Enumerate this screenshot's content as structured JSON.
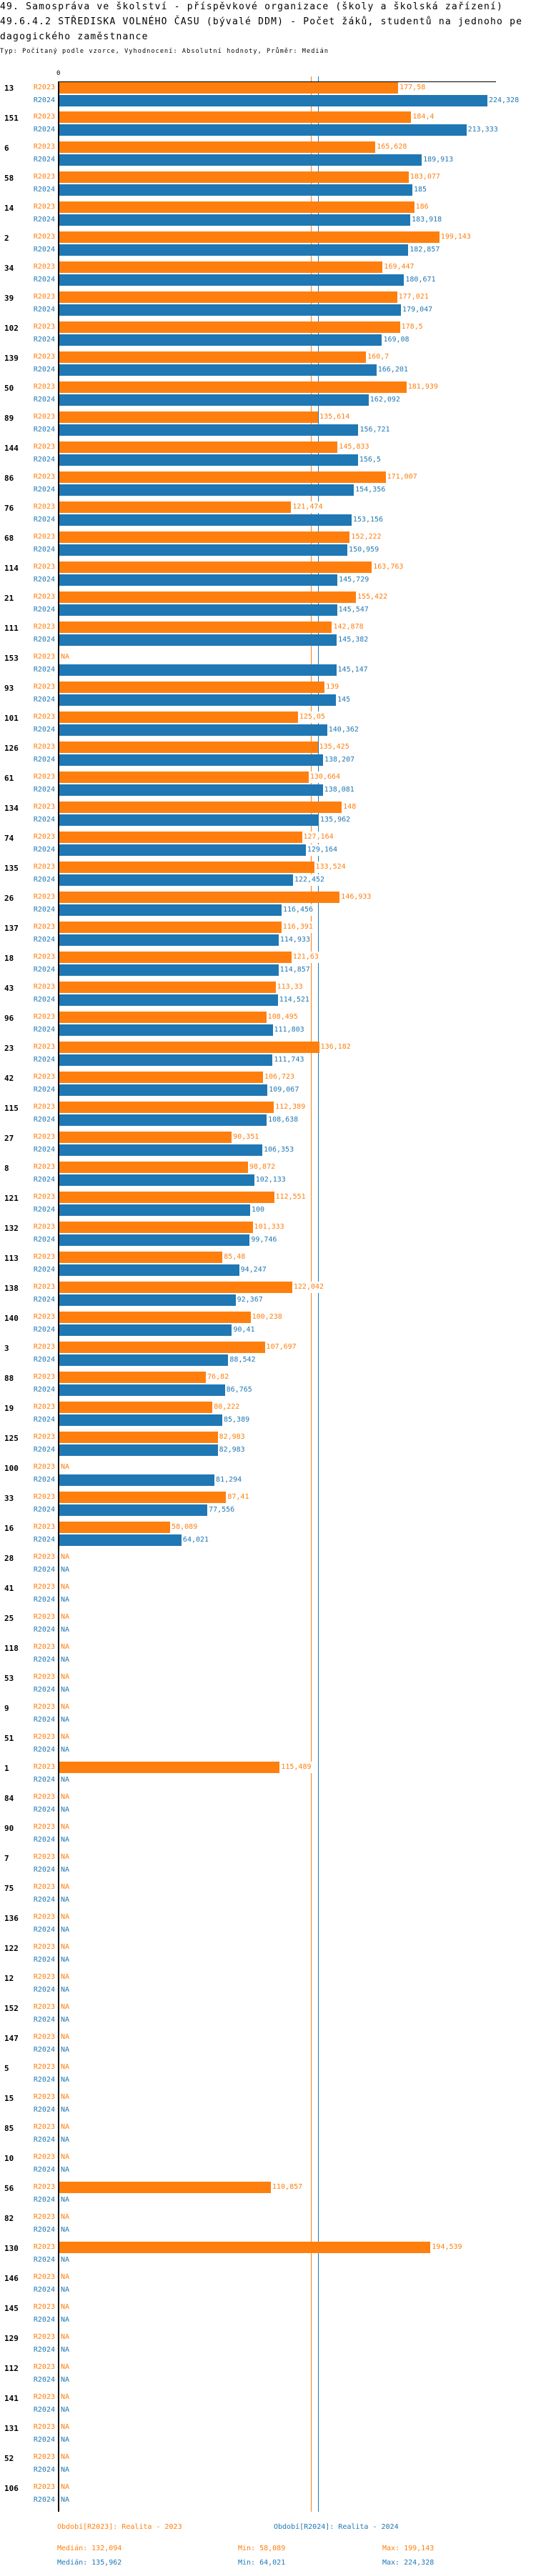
{
  "header": {
    "title_line1": "49. Samospráva ve školství - příspěvkové organizace (školy a školská zařízení)",
    "title_line2": "49.6.4.2 STŘEDISKA VOLNÉHO ČASU (bývalé DDM) - Počet žáků, studentů na jednoho pe",
    "title_line3": "dagogického zaměstnance",
    "subtitle": "Typ: Počítaný podle vzorce, Vyhodnocení: Absolutní hodnoty, Průměr: Medián"
  },
  "chart_data": {
    "type": "bar",
    "orientation": "horizontal",
    "axis_zero_label": "0",
    "xlim": [
      0,
      229
    ],
    "grid": false,
    "na_label": "NA",
    "series": [
      {
        "name": "R2023",
        "color": "#ff7f0e"
      },
      {
        "name": "R2024",
        "color": "#1f77b4"
      }
    ],
    "median_lines": {
      "R2023": 132.094,
      "R2024": 135.962
    },
    "groups": [
      {
        "id": "13",
        "R2023": 177.58,
        "R2024": 224.328
      },
      {
        "id": "151",
        "R2023": 184.4,
        "R2024": 213.333
      },
      {
        "id": "6",
        "R2023": 165.628,
        "R2024": 189.913
      },
      {
        "id": "58",
        "R2023": 183.077,
        "R2024": 185
      },
      {
        "id": "14",
        "R2023": 186,
        "R2024": 183.918
      },
      {
        "id": "2",
        "R2023": 199.143,
        "R2024": 182.857
      },
      {
        "id": "34",
        "R2023": 169.447,
        "R2024": 180.671
      },
      {
        "id": "39",
        "R2023": 177.021,
        "R2024": 179.047
      },
      {
        "id": "102",
        "R2023": 178.5,
        "R2024": 169.08
      },
      {
        "id": "139",
        "R2023": 160.7,
        "R2024": 166.201
      },
      {
        "id": "50",
        "R2023": 181.939,
        "R2024": 162.092
      },
      {
        "id": "89",
        "R2023": 135.614,
        "R2024": 156.721
      },
      {
        "id": "144",
        "R2023": 145.833,
        "R2024": 156.5
      },
      {
        "id": "86",
        "R2023": 171.007,
        "R2024": 154.356
      },
      {
        "id": "76",
        "R2023": 121.474,
        "R2024": 153.156
      },
      {
        "id": "68",
        "R2023": 152.222,
        "R2024": 150.959
      },
      {
        "id": "114",
        "R2023": 163.763,
        "R2024": 145.729
      },
      {
        "id": "21",
        "R2023": 155.422,
        "R2024": 145.547
      },
      {
        "id": "111",
        "R2023": 142.878,
        "R2024": 145.382
      },
      {
        "id": "153",
        "R2023": null,
        "R2024": 145.147
      },
      {
        "id": "93",
        "R2023": 139,
        "R2024": 145
      },
      {
        "id": "101",
        "R2023": 125.05,
        "R2024": 140.362
      },
      {
        "id": "126",
        "R2023": 135.425,
        "R2024": 138.207
      },
      {
        "id": "61",
        "R2023": 130.664,
        "R2024": 138.081
      },
      {
        "id": "134",
        "R2023": 148,
        "R2024": 135.962
      },
      {
        "id": "74",
        "R2023": 127.164,
        "R2024": 129.164
      },
      {
        "id": "135",
        "R2023": 133.524,
        "R2024": 122.452
      },
      {
        "id": "26",
        "R2023": 146.933,
        "R2024": 116.456
      },
      {
        "id": "137",
        "R2023": 116.391,
        "R2024": 114.933
      },
      {
        "id": "18",
        "R2023": 121.63,
        "R2024": 114.857
      },
      {
        "id": "43",
        "R2023": 113.33,
        "R2024": 114.521
      },
      {
        "id": "96",
        "R2023": 108.495,
        "R2024": 111.803
      },
      {
        "id": "23",
        "R2023": 136.182,
        "R2024": 111.743
      },
      {
        "id": "42",
        "R2023": 106.723,
        "R2024": 109.067
      },
      {
        "id": "115",
        "R2023": 112.389,
        "R2024": 108.638
      },
      {
        "id": "27",
        "R2023": 90.351,
        "R2024": 106.353
      },
      {
        "id": "8",
        "R2023": 98.872,
        "R2024": 102.133
      },
      {
        "id": "121",
        "R2023": 112.551,
        "R2024": 100
      },
      {
        "id": "132",
        "R2023": 101.333,
        "R2024": 99.746
      },
      {
        "id": "113",
        "R2023": 85.48,
        "R2024": 94.247
      },
      {
        "id": "138",
        "R2023": 122.042,
        "R2024": 92.367
      },
      {
        "id": "140",
        "R2023": 100.238,
        "R2024": 90.41
      },
      {
        "id": "3",
        "R2023": 107.697,
        "R2024": 88.542
      },
      {
        "id": "88",
        "R2023": 76.82,
        "R2024": 86.765
      },
      {
        "id": "19",
        "R2023": 80.222,
        "R2024": 85.389
      },
      {
        "id": "125",
        "R2023": 82.983,
        "R2024": 82.983
      },
      {
        "id": "100",
        "R2023": null,
        "R2024": 81.294
      },
      {
        "id": "33",
        "R2023": 87.41,
        "R2024": 77.556
      },
      {
        "id": "16",
        "R2023": 58.089,
        "R2024": 64.021
      },
      {
        "id": "28",
        "R2023": null,
        "R2024": null
      },
      {
        "id": "41",
        "R2023": null,
        "R2024": null
      },
      {
        "id": "25",
        "R2023": null,
        "R2024": null
      },
      {
        "id": "118",
        "R2023": null,
        "R2024": null
      },
      {
        "id": "53",
        "R2023": null,
        "R2024": null
      },
      {
        "id": "9",
        "R2023": null,
        "R2024": null
      },
      {
        "id": "51",
        "R2023": null,
        "R2024": null
      },
      {
        "id": "1",
        "R2023": 115.489,
        "R2024": null
      },
      {
        "id": "84",
        "R2023": null,
        "R2024": null
      },
      {
        "id": "90",
        "R2023": null,
        "R2024": null
      },
      {
        "id": "7",
        "R2023": null,
        "R2024": null
      },
      {
        "id": "75",
        "R2023": null,
        "R2024": null
      },
      {
        "id": "136",
        "R2023": null,
        "R2024": null
      },
      {
        "id": "122",
        "R2023": null,
        "R2024": null
      },
      {
        "id": "12",
        "R2023": null,
        "R2024": null
      },
      {
        "id": "152",
        "R2023": null,
        "R2024": null
      },
      {
        "id": "147",
        "R2023": null,
        "R2024": null
      },
      {
        "id": "5",
        "R2023": null,
        "R2024": null
      },
      {
        "id": "15",
        "R2023": null,
        "R2024": null
      },
      {
        "id": "85",
        "R2023": null,
        "R2024": null
      },
      {
        "id": "10",
        "R2023": null,
        "R2024": null
      },
      {
        "id": "56",
        "R2023": 110.857,
        "R2024": null
      },
      {
        "id": "82",
        "R2023": null,
        "R2024": null
      },
      {
        "id": "130",
        "R2023": 194.539,
        "R2024": null
      },
      {
        "id": "146",
        "R2023": null,
        "R2024": null
      },
      {
        "id": "145",
        "R2023": null,
        "R2024": null
      },
      {
        "id": "129",
        "R2023": null,
        "R2024": null
      },
      {
        "id": "112",
        "R2023": null,
        "R2024": null
      },
      {
        "id": "141",
        "R2023": null,
        "R2024": null
      },
      {
        "id": "131",
        "R2023": null,
        "R2024": null
      },
      {
        "id": "52",
        "R2023": null,
        "R2024": null
      },
      {
        "id": "106",
        "R2023": null,
        "R2024": null
      }
    ]
  },
  "legend": {
    "r2023_label": "Období[R2023]: Realita - 2023",
    "r2024_label": "Období[R2024]: Realita - 2024",
    "r2023_median": "Medián: 132,094",
    "r2023_min": "Min: 58,089",
    "r2023_max": "Max: 199,143",
    "r2024_median": "Medián: 135,962",
    "r2024_min": "Min: 64,021",
    "r2024_max": "Max: 224,328"
  }
}
